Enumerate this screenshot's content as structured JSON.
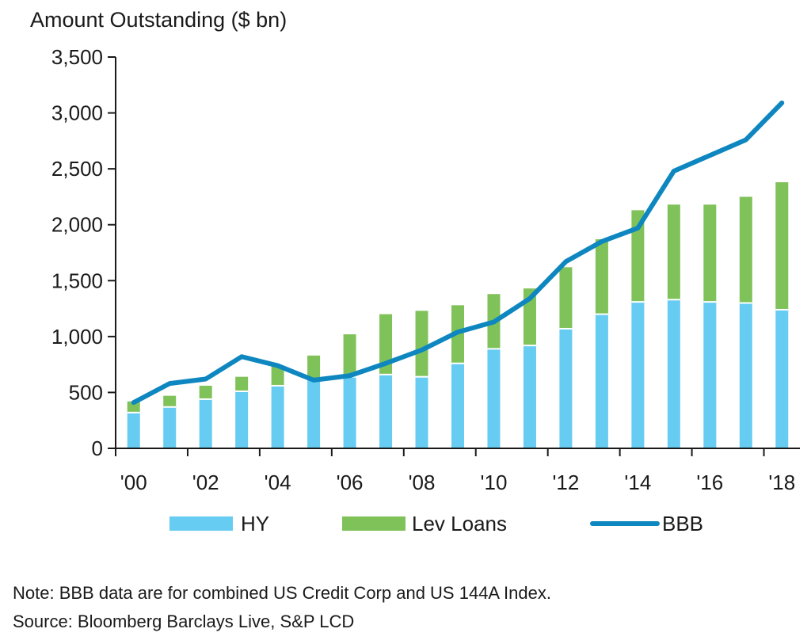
{
  "chart_data": {
    "type": "bar",
    "ylabel": "Amount Outstanding ($ bn)",
    "ylim": [
      0,
      3500
    ],
    "yticks": [
      "0",
      "500",
      "1,000",
      "1,500",
      "2,000",
      "2,500",
      "3,000",
      "3,500"
    ],
    "categories": [
      "2000",
      "2001",
      "2002",
      "2003",
      "2004",
      "2005",
      "2006",
      "2007",
      "2008",
      "2009",
      "2010",
      "2011",
      "2012",
      "2013",
      "2014",
      "2015",
      "2016",
      "2017",
      "2018"
    ],
    "xtick_labels": [
      "'00",
      "'02",
      "'04",
      "'06",
      "'08",
      "'10",
      "'12",
      "'14",
      "'16",
      "'18"
    ],
    "stacked": true,
    "series": [
      {
        "name": "HY",
        "kind": "bar",
        "color": "#66ccf2",
        "values": [
          320,
          370,
          440,
          510,
          560,
          620,
          640,
          660,
          640,
          760,
          890,
          920,
          1070,
          1200,
          1310,
          1330,
          1310,
          1300,
          1240
        ]
      },
      {
        "name": "Lev Loans",
        "kind": "bar",
        "color": "#80c25a",
        "values": [
          100,
          100,
          120,
          130,
          180,
          210,
          380,
          540,
          590,
          520,
          490,
          510,
          550,
          670,
          820,
          850,
          870,
          950,
          1140
        ]
      },
      {
        "name": "BBB",
        "kind": "line",
        "color": "#0e86bf",
        "values": [
          410,
          580,
          620,
          820,
          740,
          610,
          650,
          760,
          880,
          1040,
          1130,
          1340,
          1670,
          1850,
          1970,
          2480,
          2620,
          2760,
          3090
        ]
      }
    ],
    "legend": "bottom"
  },
  "notes": {
    "line1": "Note: BBB data are for combined US Credit Corp and US 144A Index.",
    "line2": "Source: Bloomberg Barclays Live, S&P LCD"
  }
}
